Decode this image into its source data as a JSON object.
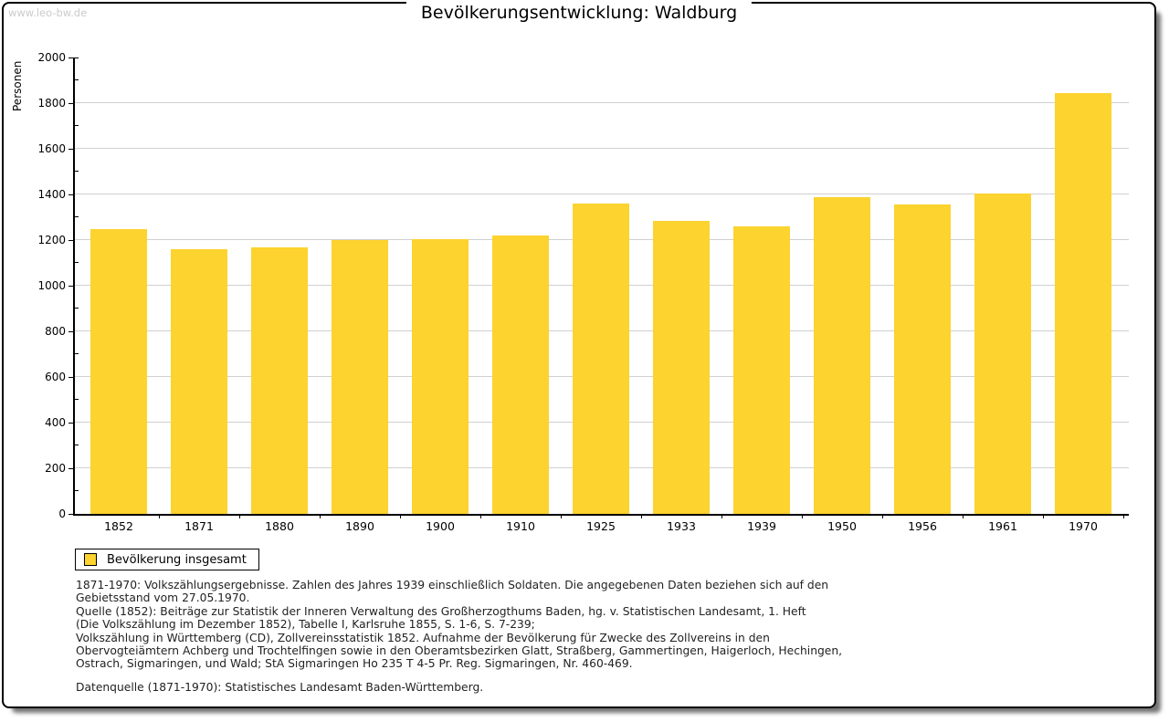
{
  "watermark": "www.leo-bw.de",
  "title": "Bevölkerungsentwicklung: Waldburg",
  "chart_data": {
    "type": "bar",
    "title": "Bevölkerungsentwicklung: Waldburg",
    "xlabel": "",
    "ylabel": "Personen",
    "ylim": [
      0,
      2000
    ],
    "ytick_major_step": 200,
    "ytick_minor_step": 100,
    "grid": true,
    "gridline_color": "#d0d0d0",
    "bar_color": "#FCD32F",
    "legend_position": "bottom-left",
    "categories": [
      "1852",
      "1871",
      "1880",
      "1890",
      "1900",
      "1910",
      "1925",
      "1933",
      "1939",
      "1950",
      "1956",
      "1961",
      "1970"
    ],
    "series": [
      {
        "name": "Bevölkerung insgesamt",
        "values": [
          1250,
          1160,
          1170,
          1200,
          1205,
          1220,
          1360,
          1285,
          1260,
          1390,
          1355,
          1405,
          1845
        ]
      }
    ]
  },
  "legend": {
    "label": "Bevölkerung insgesamt",
    "swatch_color": "#FCD32F"
  },
  "footnotes": {
    "source_lines": [
      "1871-1970: Volkszählungsergebnisse. Zahlen des Jahres 1939 einschließlich Soldaten. Die angegebenen Daten beziehen sich auf den",
      "Gebietsstand vom 27.05.1970.",
      "Quelle (1852): Beiträge zur Statistik der Inneren Verwaltung des Großherzogthums Baden, hg. v. Statistischen Landesamt, 1. Heft",
      "(Die Volkszählung im Dezember 1852), Tabelle I, Karlsruhe 1855, S. 1-6, S. 7-239;",
      "Volkszählung in Württemberg (CD), Zollvereinsstatistik 1852. Aufnahme der Bevölkerung für Zwecke des Zollvereins in den",
      "Obervogteiämtern Achberg und Trochtelfingen sowie in den Oberamtsbezirken Glatt, Straßberg, Gammertingen, Haigerloch, Hechingen,",
      "Ostrach, Sigmaringen, und Wald; StA Sigmaringen Ho 235 T 4-5 Pr. Reg. Sigmaringen, Nr. 460-469."
    ],
    "datasource": "Datenquelle (1871-1970): Statistisches Landesamt Baden-Württemberg."
  }
}
